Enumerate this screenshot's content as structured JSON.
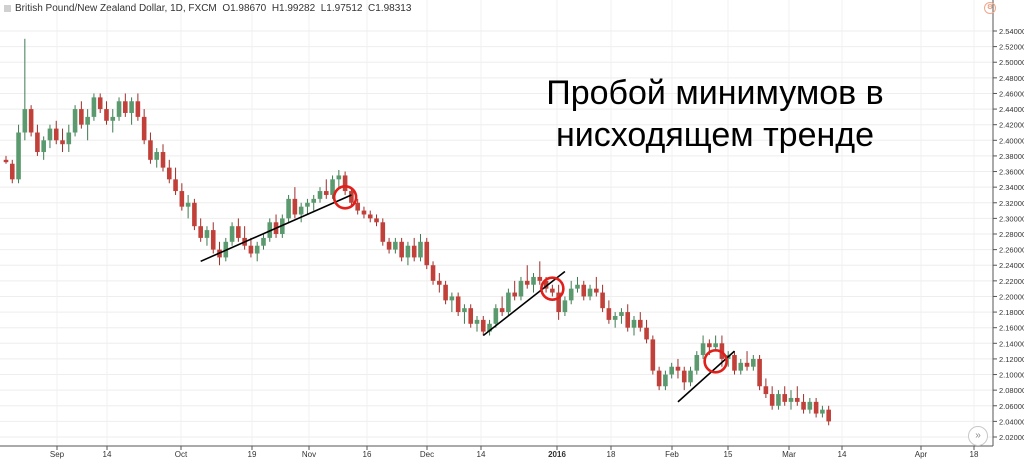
{
  "header": {
    "symbol": "British Pound/New Zealand Dollar, 1D, FXCM",
    "open": "O1.98670",
    "high": "H1.99282",
    "low": "L1.97512",
    "close": "C1.98313"
  },
  "headline": {
    "line1": "Пробой минимумов в",
    "line2": "нисходящем тренде"
  },
  "icons": {
    "settings": "gear-icon",
    "scroll": "scroll-to-end-icon"
  },
  "colors": {
    "up": "#5b9a6e",
    "down": "#c1413a",
    "marker": "#e0201b",
    "trendline": "#000000"
  },
  "chart_data": {
    "type": "candlestick",
    "y_axis": {
      "range": [
        2.02,
        2.54
      ],
      "ticks": [
        "2.54000",
        "2.52000",
        "2.50000",
        "2.48000",
        "2.46000",
        "2.44000",
        "2.42000",
        "2.40000",
        "2.38000",
        "2.36000",
        "2.34000",
        "2.32000",
        "2.30000",
        "2.28000",
        "2.26000",
        "2.24000",
        "2.22000",
        "2.20000",
        "2.18000",
        "2.16000",
        "2.14000",
        "2.12000",
        "2.10000",
        "2.08000",
        "2.06000",
        "2.04000",
        "2.02000"
      ],
      "position": "right"
    },
    "x_axis": {
      "ticks": [
        "Sep",
        "14",
        "Oct",
        "19",
        "Nov",
        "16",
        "Dec",
        "14",
        "2016",
        "18",
        "Feb",
        "15",
        "Mar",
        "14",
        "Apr",
        "18"
      ],
      "bold": [
        "2016"
      ]
    },
    "grid": true,
    "candles": [
      [
        2.375,
        2.38,
        2.37,
        2.372
      ],
      [
        2.37,
        2.375,
        2.345,
        2.35
      ],
      [
        2.35,
        2.42,
        2.345,
        2.41
      ],
      [
        2.41,
        2.53,
        2.4,
        2.44
      ],
      [
        2.44,
        2.445,
        2.405,
        2.41
      ],
      [
        2.41,
        2.42,
        2.38,
        2.385
      ],
      [
        2.385,
        2.405,
        2.375,
        2.4
      ],
      [
        2.4,
        2.42,
        2.39,
        2.415
      ],
      [
        2.415,
        2.425,
        2.395,
        2.4
      ],
      [
        2.4,
        2.415,
        2.385,
        2.395
      ],
      [
        2.395,
        2.42,
        2.385,
        2.41
      ],
      [
        2.41,
        2.445,
        2.405,
        2.44
      ],
      [
        2.44,
        2.45,
        2.415,
        2.42
      ],
      [
        2.42,
        2.44,
        2.4,
        2.43
      ],
      [
        2.43,
        2.46,
        2.425,
        2.455
      ],
      [
        2.455,
        2.46,
        2.435,
        2.44
      ],
      [
        2.44,
        2.45,
        2.42,
        2.425
      ],
      [
        2.425,
        2.44,
        2.41,
        2.43
      ],
      [
        2.43,
        2.455,
        2.425,
        2.45
      ],
      [
        2.45,
        2.46,
        2.43,
        2.435
      ],
      [
        2.435,
        2.455,
        2.42,
        2.45
      ],
      [
        2.45,
        2.46,
        2.425,
        2.43
      ],
      [
        2.43,
        2.44,
        2.395,
        2.4
      ],
      [
        2.4,
        2.41,
        2.37,
        2.375
      ],
      [
        2.375,
        2.39,
        2.365,
        2.385
      ],
      [
        2.385,
        2.395,
        2.36,
        2.365
      ],
      [
        2.365,
        2.375,
        2.345,
        2.35
      ],
      [
        2.35,
        2.365,
        2.33,
        2.335
      ],
      [
        2.335,
        2.345,
        2.31,
        2.315
      ],
      [
        2.315,
        2.33,
        2.3,
        2.32
      ],
      [
        2.32,
        2.325,
        2.285,
        2.29
      ],
      [
        2.29,
        2.3,
        2.27,
        2.275
      ],
      [
        2.275,
        2.29,
        2.265,
        2.285
      ],
      [
        2.285,
        2.295,
        2.255,
        2.26
      ],
      [
        2.26,
        2.27,
        2.24,
        2.25
      ],
      [
        2.25,
        2.275,
        2.245,
        2.27
      ],
      [
        2.27,
        2.295,
        2.265,
        2.29
      ],
      [
        2.29,
        2.3,
        2.27,
        2.275
      ],
      [
        2.275,
        2.29,
        2.26,
        2.265
      ],
      [
        2.265,
        2.275,
        2.25,
        2.255
      ],
      [
        2.255,
        2.27,
        2.245,
        2.265
      ],
      [
        2.265,
        2.28,
        2.26,
        2.275
      ],
      [
        2.275,
        2.3,
        2.27,
        2.295
      ],
      [
        2.295,
        2.305,
        2.275,
        2.28
      ],
      [
        2.28,
        2.305,
        2.275,
        2.3
      ],
      [
        2.3,
        2.33,
        2.295,
        2.325
      ],
      [
        2.325,
        2.34,
        2.3,
        2.305
      ],
      [
        2.305,
        2.32,
        2.295,
        2.315
      ],
      [
        2.315,
        2.325,
        2.305,
        2.32
      ],
      [
        2.32,
        2.33,
        2.31,
        2.325
      ],
      [
        2.325,
        2.34,
        2.32,
        2.335
      ],
      [
        2.335,
        2.35,
        2.325,
        2.33
      ],
      [
        2.33,
        2.355,
        2.325,
        2.35
      ],
      [
        2.35,
        2.362,
        2.34,
        2.355
      ],
      [
        2.355,
        2.36,
        2.33,
        2.335
      ],
      [
        2.335,
        2.34,
        2.315,
        2.32
      ],
      [
        2.32,
        2.325,
        2.305,
        2.31
      ],
      [
        2.31,
        2.315,
        2.3,
        2.305
      ],
      [
        2.305,
        2.31,
        2.295,
        2.3
      ],
      [
        2.3,
        2.305,
        2.29,
        2.295
      ],
      [
        2.295,
        2.3,
        2.265,
        2.27
      ],
      [
        2.27,
        2.275,
        2.255,
        2.26
      ],
      [
        2.26,
        2.275,
        2.255,
        2.27
      ],
      [
        2.27,
        2.275,
        2.245,
        2.25
      ],
      [
        2.25,
        2.27,
        2.24,
        2.265
      ],
      [
        2.265,
        2.275,
        2.245,
        2.25
      ],
      [
        2.25,
        2.28,
        2.245,
        2.27
      ],
      [
        2.27,
        2.275,
        2.235,
        2.24
      ],
      [
        2.24,
        2.245,
        2.215,
        2.22
      ],
      [
        2.22,
        2.23,
        2.205,
        2.215
      ],
      [
        2.215,
        2.22,
        2.19,
        2.195
      ],
      [
        2.195,
        2.205,
        2.18,
        2.2
      ],
      [
        2.2,
        2.205,
        2.175,
        2.18
      ],
      [
        2.18,
        2.19,
        2.165,
        2.185
      ],
      [
        2.185,
        2.19,
        2.16,
        2.165
      ],
      [
        2.165,
        2.175,
        2.155,
        2.17
      ],
      [
        2.17,
        2.175,
        2.15,
        2.155
      ],
      [
        2.155,
        2.17,
        2.15,
        2.165
      ],
      [
        2.165,
        2.19,
        2.16,
        2.185
      ],
      [
        2.185,
        2.2,
        2.175,
        2.18
      ],
      [
        2.18,
        2.21,
        2.175,
        2.205
      ],
      [
        2.205,
        2.22,
        2.195,
        2.2
      ],
      [
        2.2,
        2.225,
        2.195,
        2.22
      ],
      [
        2.22,
        2.24,
        2.21,
        2.215
      ],
      [
        2.215,
        2.23,
        2.205,
        2.225
      ],
      [
        2.225,
        2.245,
        2.215,
        2.22
      ],
      [
        2.22,
        2.225,
        2.205,
        2.21
      ],
      [
        2.21,
        2.215,
        2.2,
        2.205
      ],
      [
        2.205,
        2.215,
        2.17,
        2.18
      ],
      [
        2.18,
        2.2,
        2.175,
        2.195
      ],
      [
        2.195,
        2.22,
        2.19,
        2.21
      ],
      [
        2.21,
        2.225,
        2.205,
        2.215
      ],
      [
        2.215,
        2.22,
        2.195,
        2.2
      ],
      [
        2.2,
        2.215,
        2.195,
        2.21
      ],
      [
        2.21,
        2.225,
        2.2,
        2.205
      ],
      [
        2.205,
        2.215,
        2.18,
        2.185
      ],
      [
        2.185,
        2.195,
        2.165,
        2.17
      ],
      [
        2.17,
        2.18,
        2.16,
        2.175
      ],
      [
        2.175,
        2.185,
        2.165,
        2.18
      ],
      [
        2.18,
        2.19,
        2.155,
        2.16
      ],
      [
        2.16,
        2.175,
        2.15,
        2.17
      ],
      [
        2.17,
        2.18,
        2.155,
        2.16
      ],
      [
        2.16,
        2.17,
        2.14,
        2.145
      ],
      [
        2.145,
        2.15,
        2.1,
        2.105
      ],
      [
        2.105,
        2.11,
        2.08,
        2.085
      ],
      [
        2.085,
        2.105,
        2.08,
        2.1
      ],
      [
        2.1,
        2.115,
        2.095,
        2.11
      ],
      [
        2.11,
        2.12,
        2.095,
        2.105
      ],
      [
        2.105,
        2.11,
        2.08,
        2.09
      ],
      [
        2.09,
        2.11,
        2.085,
        2.105
      ],
      [
        2.105,
        2.13,
        2.1,
        2.125
      ],
      [
        2.125,
        2.15,
        2.12,
        2.14
      ],
      [
        2.14,
        2.145,
        2.125,
        2.135
      ],
      [
        2.135,
        2.15,
        2.13,
        2.14
      ],
      [
        2.14,
        2.15,
        2.11,
        2.12
      ],
      [
        2.12,
        2.13,
        2.11,
        2.125
      ],
      [
        2.125,
        2.13,
        2.1,
        2.105
      ],
      [
        2.105,
        2.12,
        2.1,
        2.115
      ],
      [
        2.115,
        2.13,
        2.105,
        2.11
      ],
      [
        2.11,
        2.125,
        2.105,
        2.12
      ],
      [
        2.12,
        2.125,
        2.08,
        2.085
      ],
      [
        2.085,
        2.095,
        2.07,
        2.075
      ],
      [
        2.075,
        2.085,
        2.055,
        2.06
      ],
      [
        2.06,
        2.08,
        2.055,
        2.075
      ],
      [
        2.075,
        2.085,
        2.06,
        2.065
      ],
      [
        2.065,
        2.08,
        2.055,
        2.07
      ],
      [
        2.07,
        2.085,
        2.06,
        2.065
      ],
      [
        2.065,
        2.075,
        2.05,
        2.055
      ],
      [
        2.055,
        2.07,
        2.05,
        2.065
      ],
      [
        2.065,
        2.07,
        2.045,
        2.05
      ],
      [
        2.05,
        2.06,
        2.045,
        2.055
      ],
      [
        2.055,
        2.06,
        2.035,
        2.04
      ]
    ],
    "markers": [
      {
        "candle": 54,
        "price": 2.327
      },
      {
        "candle": 87,
        "price": 2.21
      },
      {
        "candle": 113,
        "price": 2.117
      }
    ],
    "trendlines": [
      {
        "from": [
          31,
          2.245
        ],
        "to": [
          55,
          2.33
        ]
      },
      {
        "from": [
          76,
          2.15
        ],
        "to": [
          89,
          2.232
        ]
      },
      {
        "from": [
          107,
          2.065
        ],
        "to": [
          116,
          2.13
        ]
      }
    ]
  }
}
